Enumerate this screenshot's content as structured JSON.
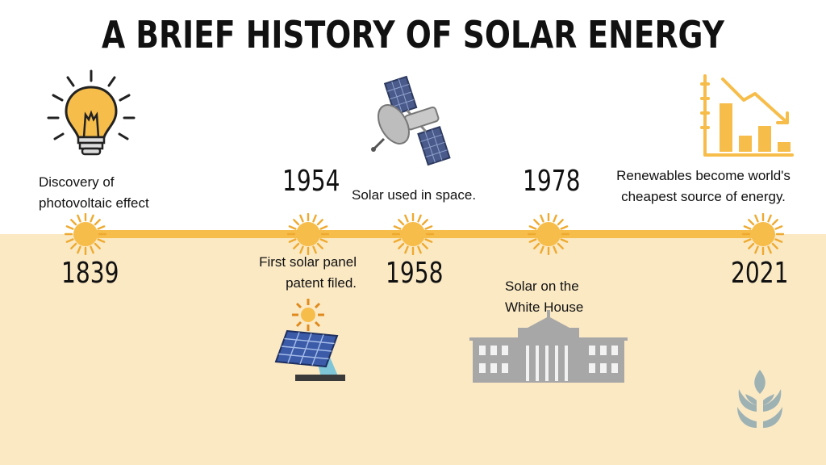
{
  "title": "A BRIEF HISTORY OF SOLAR ENERGY",
  "colors": {
    "top_bg": "#ffffff",
    "bottom_bg": "#fbe9c4",
    "timeline": "#f7bd4a",
    "sun": "#f7bd4a",
    "sun_rays": "#eeaa30",
    "panel": "#3b5ba8",
    "building": "#a7a7a7",
    "leaf": "#9eb2b4"
  },
  "events": [
    {
      "year": "1839",
      "description": [
        "Discovery of",
        "photovoltaic effect"
      ],
      "icon": "lightbulb-icon"
    },
    {
      "year": "1954",
      "description": [
        "First solar panel",
        "patent filed."
      ],
      "icon": "solar-panel-icon"
    },
    {
      "year": "1958",
      "description": [
        "Solar used in space."
      ],
      "icon": "satellite-icon"
    },
    {
      "year": "1978",
      "description": [
        "Solar on the",
        "White House"
      ],
      "icon": "white-house-icon"
    },
    {
      "year": "2021",
      "description": [
        "Renewables become world's",
        "cheapest source of energy."
      ],
      "icon": "declining-bar-chart-icon"
    }
  ],
  "logo": "leaf-logo-icon"
}
